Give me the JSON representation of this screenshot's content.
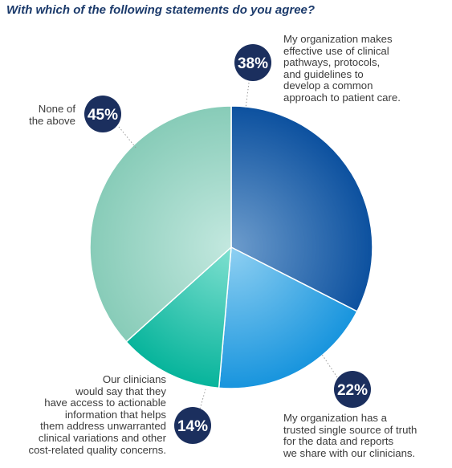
{
  "chart_data": {
    "type": "pie",
    "title": "With which of the following statements do you agree?",
    "slices": [
      {
        "label": "My organization makes\neffective use of clinical\npathways, protocols,\nand guidelines to\ndevelop a common\napproach to patient care.",
        "value_label": "38%",
        "value": 38,
        "sweep_deg": 117,
        "color": "#1a5aa6"
      },
      {
        "label": "My organization has a\ntrusted single source of truth\nfor the data and reports\nwe share with our clinicians.",
        "value_label": "22%",
        "value": 22,
        "sweep_deg": 68,
        "color": "#2f9be0"
      },
      {
        "label": "Our clinicians\nwould say that they\nhave access to actionable\ninformation that helps\nthem address unwarranted\nclinical variations and other\ncost-related quality concerns.",
        "value_label": "14%",
        "value": 14,
        "sweep_deg": 43,
        "color": "#21bba6"
      },
      {
        "label": "None of\nthe above",
        "value_label": "45%",
        "value": 45,
        "sweep_deg": 132,
        "color": "#8fd0bf"
      }
    ]
  }
}
